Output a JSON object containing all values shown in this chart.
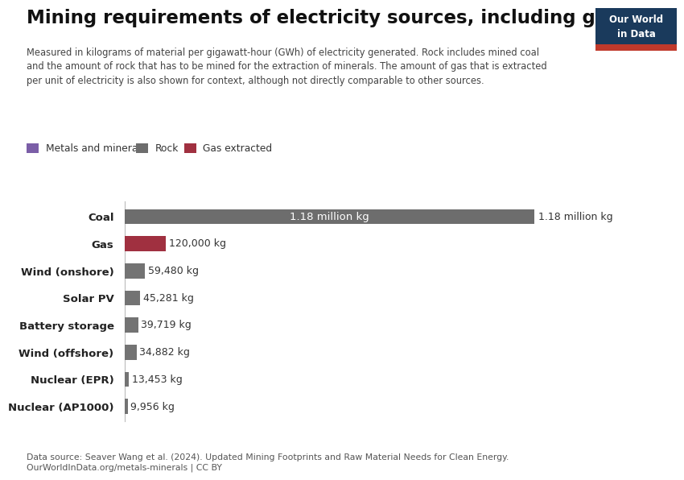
{
  "title": "Mining requirements of electricity sources, including gas",
  "subtitle": "Measured in kilograms of material per gigawatt-hour (GWh) of electricity generated. Rock includes mined coal\nand the amount of rock that has to be mined for the extraction of minerals. The amount of gas that is extracted\nper unit of electricity is also shown for context, although not directly comparable to other sources.",
  "categories": [
    "Coal",
    "Gas",
    "Wind (onshore)",
    "Solar PV",
    "Battery storage",
    "Wind (offshore)",
    "Nuclear (EPR)",
    "Nuclear (AP1000)"
  ],
  "values": [
    1180000,
    120000,
    59480,
    45281,
    39719,
    34882,
    13453,
    9956
  ],
  "labels": [
    "1.18 million kg",
    "120,000 kg",
    "59,480 kg",
    "45,281 kg",
    "39,719 kg",
    "34,882 kg",
    "13,453 kg",
    "9,956 kg"
  ],
  "bar_colors": [
    "#6d6d6d",
    "#a03040",
    "#737373",
    "#737373",
    "#737373",
    "#737373",
    "#737373",
    "#737373"
  ],
  "legend_items": [
    {
      "label": "Metals and minerals",
      "color": "#7b5ea7"
    },
    {
      "label": "Rock",
      "color": "#6d6d6d"
    },
    {
      "label": "Gas extracted",
      "color": "#a03040"
    }
  ],
  "coal_label_inside": "1.18 million kg",
  "coal_label_outside": "1.18 million kg",
  "data_source": "Data source: Seaver Wang et al. (2024). Updated Mining Footprints and Raw Material Needs for Clean Energy.\nOurWorldInData.org/metals-minerals | CC BY",
  "background_color": "#ffffff",
  "logo_bg": "#1a3a5c",
  "logo_text_line1": "Our World",
  "logo_text_line2": "in Data",
  "logo_accent": "#c0392b",
  "xlim": [
    0,
    1300000
  ],
  "bar_height": 0.55
}
